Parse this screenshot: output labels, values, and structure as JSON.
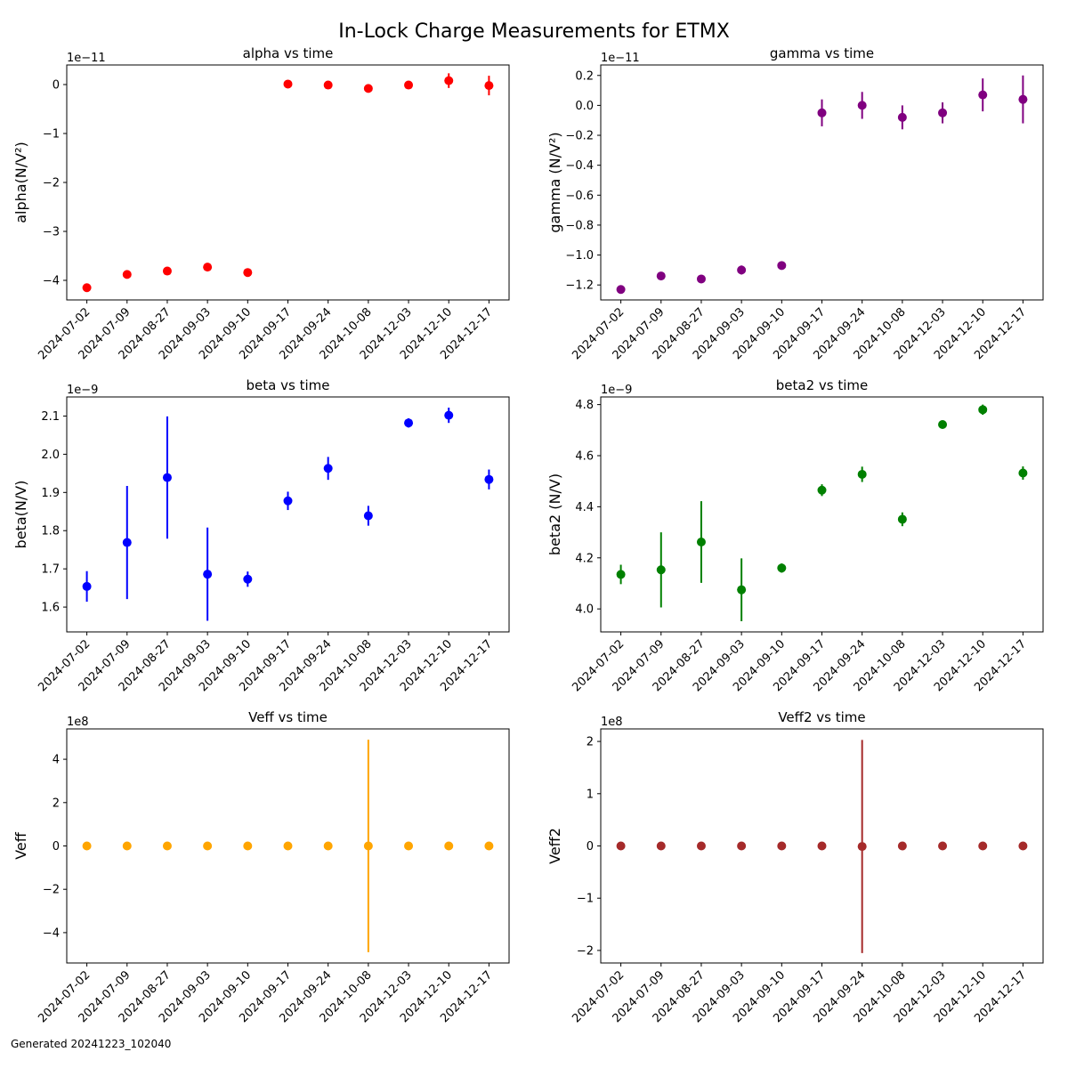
{
  "figure": {
    "suptitle": "In-Lock Charge Measurements for ETMX",
    "footer": "Generated 20241223_102040"
  },
  "chart_data": [
    {
      "type": "scatter",
      "title": "alpha vs time",
      "ylabel": "alpha(N/V²)",
      "offset_label": "1e−11",
      "x": [
        "2024-07-02",
        "2024-07-09",
        "2024-08-27",
        "2024-09-03",
        "2024-09-10",
        "2024-09-17",
        "2024-09-24",
        "2024-10-08",
        "2024-12-03",
        "2024-12-10",
        "2024-12-17"
      ],
      "y": [
        -4.15,
        -3.88,
        -3.81,
        -3.73,
        -3.84,
        0.01,
        -0.01,
        -0.08,
        -0.01,
        0.08,
        -0.02
      ],
      "yerr": [
        0.05,
        0.05,
        0.04,
        0.04,
        0.04,
        0.06,
        0.08,
        0.07,
        0.06,
        0.15,
        0.2
      ],
      "ylim": [
        -4.4,
        0.4
      ],
      "yticks": [
        -4,
        -3,
        -2,
        -1,
        0
      ],
      "ytick_labels": [
        "−4",
        "−3",
        "−2",
        "−1",
        "0"
      ],
      "color": "#ff0000"
    },
    {
      "type": "scatter",
      "title": "gamma vs time",
      "ylabel": "gamma (N/V²)",
      "offset_label": "1e−11",
      "x": [
        "2024-07-02",
        "2024-07-09",
        "2024-08-27",
        "2024-09-03",
        "2024-09-10",
        "2024-09-17",
        "2024-09-24",
        "2024-10-08",
        "2024-12-03",
        "2024-12-10",
        "2024-12-17"
      ],
      "y": [
        -1.23,
        -1.14,
        -1.16,
        -1.1,
        -1.07,
        -0.05,
        0.0,
        -0.08,
        -0.05,
        0.07,
        0.04
      ],
      "yerr": [
        0.02,
        0.02,
        0.02,
        0.03,
        0.02,
        0.09,
        0.09,
        0.08,
        0.07,
        0.11,
        0.16
      ],
      "ylim": [
        -1.3,
        0.27
      ],
      "yticks": [
        -1.2,
        -1.0,
        -0.8,
        -0.6,
        -0.4,
        -0.2,
        0.0,
        0.2
      ],
      "ytick_labels": [
        "−1.2",
        "−1.0",
        "−0.8",
        "−0.6",
        "−0.4",
        "−0.2",
        "0.0",
        "0.2"
      ],
      "color": "#800080"
    },
    {
      "type": "scatter",
      "title": "beta vs time",
      "ylabel": "beta(N/V)",
      "offset_label": "1e−9",
      "x": [
        "2024-07-02",
        "2024-07-09",
        "2024-08-27",
        "2024-09-03",
        "2024-09-10",
        "2024-09-17",
        "2024-09-24",
        "2024-10-08",
        "2024-12-03",
        "2024-12-10",
        "2024-12-17"
      ],
      "y": [
        1.654,
        1.769,
        1.939,
        1.686,
        1.673,
        1.878,
        1.963,
        1.839,
        2.082,
        2.102,
        1.934
      ],
      "yerr": [
        0.04,
        0.148,
        0.16,
        0.122,
        0.02,
        0.024,
        0.03,
        0.026,
        0.012,
        0.02,
        0.026
      ],
      "ylim": [
        1.535,
        2.15
      ],
      "yticks": [
        1.6,
        1.7,
        1.8,
        1.9,
        2.0,
        2.1
      ],
      "ytick_labels": [
        "1.6",
        "1.7",
        "1.8",
        "1.9",
        "2.0",
        "2.1"
      ],
      "color": "#0000ff"
    },
    {
      "type": "scatter",
      "title": "beta2 vs time",
      "ylabel": "beta2 (N/V)",
      "offset_label": "1e−9",
      "x": [
        "2024-07-02",
        "2024-07-09",
        "2024-08-27",
        "2024-09-03",
        "2024-09-10",
        "2024-09-17",
        "2024-09-24",
        "2024-10-08",
        "2024-12-03",
        "2024-12-10",
        "2024-12-17"
      ],
      "y": [
        4.135,
        4.153,
        4.262,
        4.075,
        4.16,
        4.465,
        4.527,
        4.351,
        4.722,
        4.78,
        4.532
      ],
      "yerr": [
        0.038,
        0.147,
        0.16,
        0.123,
        0.018,
        0.023,
        0.03,
        0.027,
        0.012,
        0.02,
        0.026
      ],
      "ylim": [
        3.91,
        4.83
      ],
      "yticks": [
        4.0,
        4.2,
        4.4,
        4.6,
        4.8
      ],
      "ytick_labels": [
        "4.0",
        "4.2",
        "4.4",
        "4.6",
        "4.8"
      ],
      "color": "#008000"
    },
    {
      "type": "scatter",
      "title": "Veff vs time",
      "ylabel": "Veff",
      "offset_label": "1e8",
      "x": [
        "2024-07-02",
        "2024-07-09",
        "2024-08-27",
        "2024-09-03",
        "2024-09-10",
        "2024-09-17",
        "2024-09-24",
        "2024-10-08",
        "2024-12-03",
        "2024-12-10",
        "2024-12-17"
      ],
      "y": [
        0,
        0,
        0,
        0,
        0,
        0,
        0,
        0,
        0,
        0,
        0
      ],
      "yerr": [
        0.01,
        0.01,
        0.01,
        0.01,
        0.01,
        0.01,
        0.01,
        4.9,
        0.01,
        0.01,
        0.01
      ],
      "ylim": [
        -5.4,
        5.4
      ],
      "yticks": [
        -4,
        -2,
        0,
        2,
        4
      ],
      "ytick_labels": [
        "−4",
        "−2",
        "0",
        "2",
        "4"
      ],
      "color": "#ffa500"
    },
    {
      "type": "scatter",
      "title": "Veff2 vs time",
      "ylabel": "Veff2",
      "offset_label": "1e8",
      "x": [
        "2024-07-02",
        "2024-07-09",
        "2024-08-27",
        "2024-09-03",
        "2024-09-10",
        "2024-09-17",
        "2024-09-24",
        "2024-10-08",
        "2024-12-03",
        "2024-12-10",
        "2024-12-17"
      ],
      "y": [
        0,
        0,
        0,
        0,
        0,
        0,
        -0.01,
        0,
        0,
        0,
        0
      ],
      "yerr": [
        0.005,
        0.005,
        0.005,
        0.005,
        0.005,
        0.005,
        2.04,
        0.005,
        0.005,
        0.005,
        0.005
      ],
      "ylim": [
        -2.24,
        2.24
      ],
      "yticks": [
        -2,
        -1,
        0,
        1,
        2
      ],
      "ytick_labels": [
        "−2",
        "−1",
        "0",
        "1",
        "2"
      ],
      "color": "#a52a2a"
    }
  ]
}
